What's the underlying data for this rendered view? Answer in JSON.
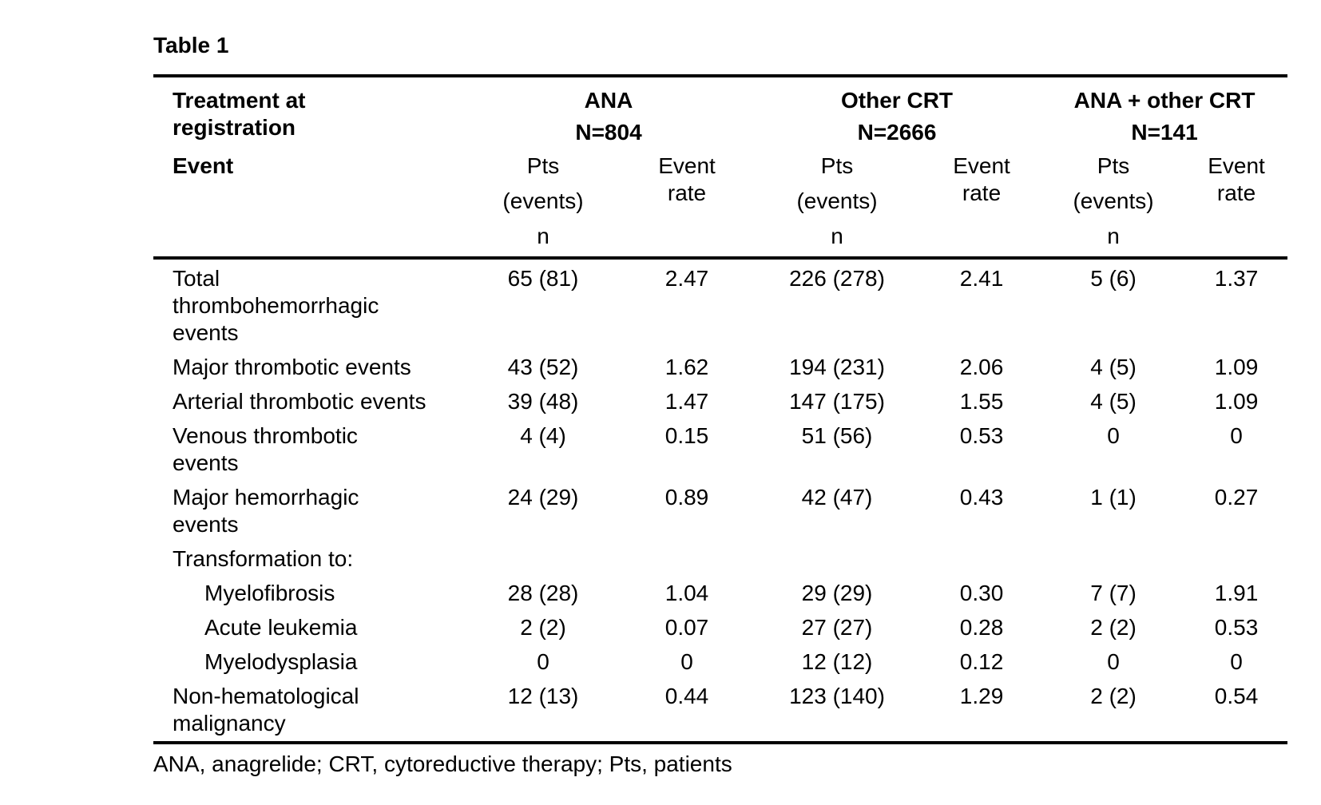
{
  "page": {
    "title": "Table 1",
    "footnote": "ANA, anagrelide; CRT, cytoreductive therapy; Pts, patients"
  },
  "table": {
    "corner_header": {
      "line1": "Treatment at",
      "line2": "registration"
    },
    "event_header": "Event",
    "groups": [
      {
        "name": "ANA",
        "n": "N=804"
      },
      {
        "name": "Other CRT",
        "n": "N=2666"
      },
      {
        "name": "ANA + other CRT",
        "n": "N=141"
      }
    ],
    "subheaders": {
      "pts": [
        "Pts",
        "(events)",
        "n"
      ],
      "rate": [
        "Event",
        "rate"
      ]
    },
    "rows": [
      {
        "label_lines": [
          "Total",
          "thrombohemorrhagic",
          "events"
        ],
        "indent": false,
        "values": [
          "65 (81)",
          "2.47",
          "226 (278)",
          "2.41",
          "5 (6)",
          "1.37"
        ]
      },
      {
        "label_lines": [
          "Major thrombotic events"
        ],
        "indent": false,
        "values": [
          "43 (52)",
          "1.62",
          "194 (231)",
          "2.06",
          "4 (5)",
          "1.09"
        ]
      },
      {
        "label_lines": [
          "Arterial thrombotic events"
        ],
        "indent": false,
        "values": [
          "39 (48)",
          "1.47",
          "147 (175)",
          "1.55",
          "4 (5)",
          "1.09"
        ]
      },
      {
        "label_lines": [
          "Venous thrombotic",
          "events"
        ],
        "indent": false,
        "values": [
          "4 (4)",
          "0.15",
          "51 (56)",
          "0.53",
          "0",
          "0"
        ]
      },
      {
        "label_lines": [
          "Major hemorrhagic",
          "events"
        ],
        "indent": false,
        "values": [
          "24 (29)",
          "0.89",
          "42 (47)",
          "0.43",
          "1 (1)",
          "0.27"
        ]
      },
      {
        "label_lines": [
          "Transformation to:"
        ],
        "indent": false,
        "values": [
          "",
          "",
          "",
          "",
          "",
          ""
        ]
      },
      {
        "label_lines": [
          "Myelofibrosis"
        ],
        "indent": true,
        "values": [
          "28 (28)",
          "1.04",
          "29 (29)",
          "0.30",
          "7 (7)",
          "1.91"
        ]
      },
      {
        "label_lines": [
          "Acute leukemia"
        ],
        "indent": true,
        "values": [
          "2 (2)",
          "0.07",
          "27 (27)",
          "0.28",
          "2 (2)",
          "0.53"
        ]
      },
      {
        "label_lines": [
          "Myelodysplasia"
        ],
        "indent": true,
        "values": [
          "0",
          "0",
          "12 (12)",
          "0.12",
          "0",
          "0"
        ]
      },
      {
        "label_lines": [
          "Non-hematological",
          "malignancy"
        ],
        "indent": false,
        "values": [
          "12 (13)",
          "0.44",
          "123 (140)",
          "1.29",
          "2 (2)",
          "0.54"
        ]
      }
    ]
  }
}
